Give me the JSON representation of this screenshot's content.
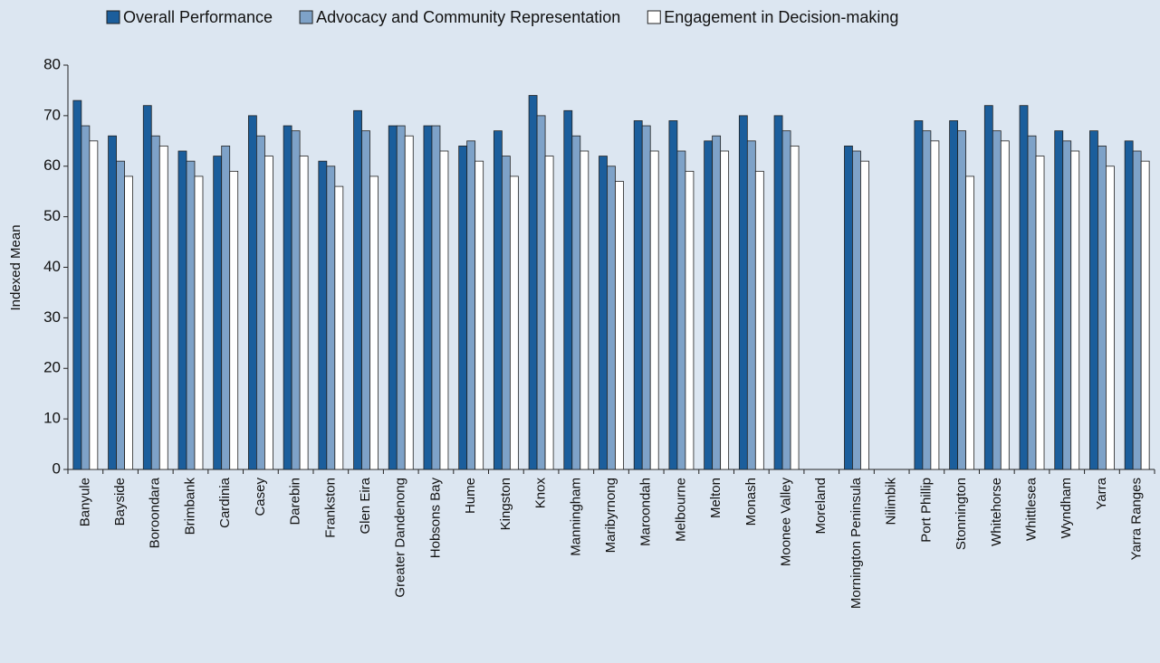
{
  "chart_data": {
    "type": "bar",
    "y_label": "Indexed Mean",
    "categories": [
      "Banyule",
      "Bayside",
      "Boroondara",
      "Brimbank",
      "Cardinia",
      "Casey",
      "Darebin",
      "Frankston",
      "Glen Eira",
      "Greater Dandenong",
      "Hobsons Bay",
      "Hume",
      "Kingston",
      "Knox",
      "Manningham",
      "Maribyrnong",
      "Maroondah",
      "Melbourne",
      "Melton",
      "Monash",
      "Moonee Valley",
      "Moreland",
      "Mornington Peninsula",
      "Nilimbik",
      "Port Phillip",
      "Stonnington",
      "Whitehorse",
      "Whittlesea",
      "Wyndham",
      "Yarra",
      "Yarra Ranges"
    ],
    "series": [
      {
        "name": "Overall Performance",
        "color": "#1b5e9c",
        "values": [
          73,
          66,
          72,
          63,
          62,
          70,
          68,
          61,
          71,
          68,
          68,
          64,
          67,
          74,
          71,
          62,
          69,
          69,
          65,
          70,
          70,
          null,
          64,
          null,
          69,
          69,
          72,
          72,
          67,
          67,
          65
        ]
      },
      {
        "name": "Advocacy and Community Representation",
        "color": "#7ea2c8",
        "values": [
          68,
          61,
          66,
          61,
          64,
          66,
          67,
          60,
          67,
          68,
          68,
          65,
          62,
          70,
          66,
          60,
          68,
          63,
          66,
          65,
          67,
          null,
          63,
          null,
          67,
          67,
          67,
          66,
          65,
          64,
          63
        ]
      },
      {
        "name": "Engagement in Decision-making",
        "color": "#ffffff",
        "values": [
          65,
          58,
          64,
          58,
          59,
          62,
          62,
          56,
          58,
          66,
          63,
          61,
          58,
          62,
          63,
          57,
          63,
          59,
          63,
          59,
          64,
          null,
          61,
          null,
          65,
          58,
          65,
          62,
          63,
          60,
          61
        ]
      }
    ],
    "ylim": [
      0,
      80
    ],
    "yticks": [
      0,
      10,
      20,
      30,
      40,
      50,
      60,
      70,
      80
    ],
    "grid": false,
    "legend": "top"
  }
}
